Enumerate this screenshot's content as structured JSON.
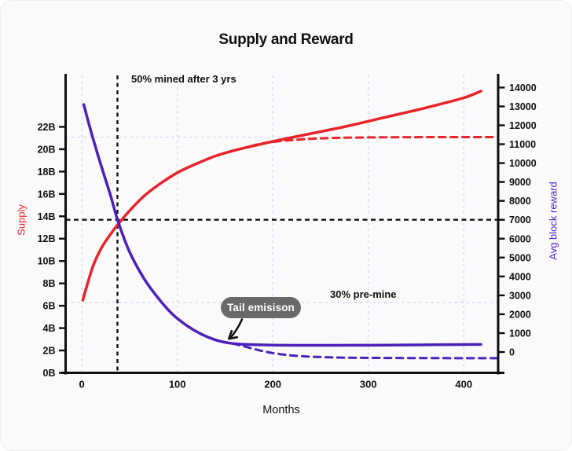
{
  "title": "Supply and Reward",
  "colors": {
    "supply": "#e8232a",
    "reward": "#4c20ba",
    "grid": "#dccdf6",
    "reference": "#111111",
    "axis": "#0f0f0f",
    "badge_bg": "#696969",
    "badge_text": "#ffffff",
    "card_bg": "#fafafa"
  },
  "chart_data": {
    "type": "line",
    "title": "Supply and Reward",
    "xlabel": "Months",
    "x_ticks": [
      0,
      100,
      200,
      300,
      400
    ],
    "x_range": [
      -17,
      436
    ],
    "left_axis": {
      "label": "Supply",
      "color": "#e8232a",
      "tick_values": [
        0,
        2,
        4,
        6,
        8,
        10,
        12,
        14,
        16,
        18,
        20,
        22
      ],
      "tick_suffix": "B",
      "range": [
        0,
        26.6
      ]
    },
    "right_axis": {
      "label": "Avg block reward",
      "color": "#5226c9",
      "tick_values": [
        0,
        1000,
        2000,
        3000,
        4000,
        5000,
        6000,
        7000,
        8000,
        9000,
        10000,
        11000,
        12000,
        13000,
        14000
      ],
      "range": [
        -1100,
        14640
      ]
    },
    "gridlines": {
      "vertical_months": [
        0,
        100,
        200,
        300,
        400
      ],
      "horizontal_left_values": [
        21.08,
        6.3
      ]
    },
    "reference_lines": [
      {
        "name": "three-year-marker",
        "orientation": "vertical",
        "month": 37.3
      },
      {
        "name": "half-mined-level",
        "orientation": "horizontal",
        "right_value": 7000
      }
    ],
    "series": [
      {
        "name": "supply-capped",
        "axis": "left",
        "style": "dashed",
        "color": "#e8232a",
        "points": [
          [
            165,
            20.0
          ],
          [
            185,
            20.45
          ],
          [
            205,
            20.7
          ],
          [
            225,
            20.85
          ],
          [
            245,
            20.95
          ],
          [
            270,
            21.02
          ],
          [
            310,
            21.06
          ],
          [
            360,
            21.08
          ],
          [
            400,
            21.08
          ],
          [
            434,
            21.08
          ]
        ]
      },
      {
        "name": "reward-no-tail",
        "axis": "right",
        "style": "dashed",
        "color": "#4c20ba",
        "points": [
          [
            158,
            450
          ],
          [
            170,
            300
          ],
          [
            182,
            140
          ],
          [
            196,
            -20
          ],
          [
            212,
            -140
          ],
          [
            230,
            -220
          ],
          [
            252,
            -270
          ],
          [
            280,
            -300
          ],
          [
            320,
            -315
          ],
          [
            370,
            -322
          ],
          [
            434,
            -325
          ]
        ]
      },
      {
        "name": "supply",
        "axis": "left",
        "style": "solid",
        "color": "#e8232a",
        "points": [
          [
            1,
            6.5
          ],
          [
            6,
            8.0
          ],
          [
            12,
            9.6
          ],
          [
            20,
            11.1
          ],
          [
            30,
            12.4
          ],
          [
            38,
            13.3
          ],
          [
            50,
            14.5
          ],
          [
            65,
            15.8
          ],
          [
            80,
            16.8
          ],
          [
            100,
            17.9
          ],
          [
            120,
            18.7
          ],
          [
            140,
            19.4
          ],
          [
            160,
            19.9
          ],
          [
            180,
            20.3
          ],
          [
            200,
            20.7
          ],
          [
            240,
            21.4
          ],
          [
            280,
            22.1
          ],
          [
            320,
            22.9
          ],
          [
            360,
            23.7
          ],
          [
            400,
            24.6
          ],
          [
            418,
            25.2
          ]
        ]
      },
      {
        "name": "reward",
        "axis": "right",
        "style": "solid",
        "color": "#4c20ba",
        "points": [
          [
            2,
            13100
          ],
          [
            10,
            11600
          ],
          [
            20,
            9900
          ],
          [
            30,
            8300
          ],
          [
            38,
            6900
          ],
          [
            50,
            5300
          ],
          [
            65,
            3900
          ],
          [
            80,
            2850
          ],
          [
            95,
            2000
          ],
          [
            110,
            1400
          ],
          [
            125,
            950
          ],
          [
            140,
            640
          ],
          [
            155,
            470
          ],
          [
            170,
            405
          ],
          [
            200,
            370
          ],
          [
            240,
            355
          ],
          [
            280,
            360
          ],
          [
            320,
            370
          ],
          [
            370,
            385
          ],
          [
            418,
            400
          ]
        ]
      }
    ],
    "annotations": [
      {
        "name": "mined-note",
        "text": "50% mined after 3 yrs"
      },
      {
        "name": "premine-note",
        "text": "30% pre-mine"
      },
      {
        "name": "tail-emission-badge",
        "text": "Tail emisison",
        "points_to": {
          "month": 154,
          "right_value": 700
        }
      }
    ]
  }
}
